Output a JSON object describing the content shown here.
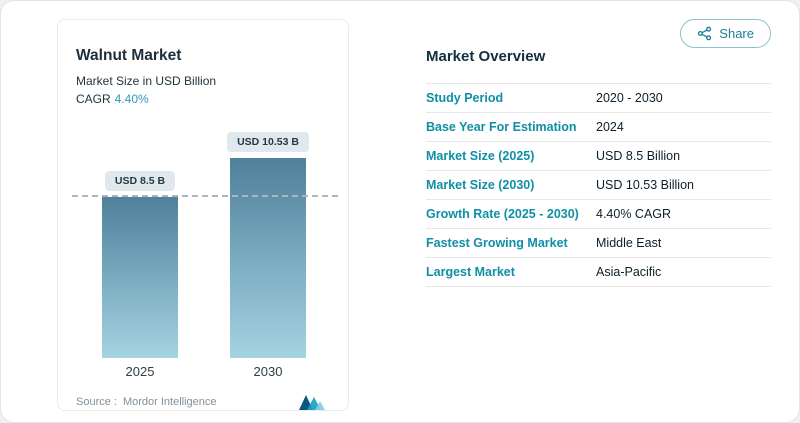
{
  "share": {
    "label": "Share"
  },
  "chart_panel": {
    "title": "Walnut Market",
    "subtitle": "Market Size in USD Billion",
    "cagr_label": "CAGR",
    "cagr_value": "4.40%",
    "source_label": "Source :",
    "source_value": "Mordor Intelligence"
  },
  "chart_data": {
    "type": "bar",
    "title": "Walnut Market",
    "subtitle": "Market Size in USD Billion",
    "categories": [
      "2025",
      "2030"
    ],
    "values": [
      8.5,
      10.53
    ],
    "bar_labels": [
      "USD 8.5 B",
      "USD 10.53 B"
    ],
    "ylabel": "Market Size (USD Billion)",
    "ylim": [
      0,
      10.53
    ],
    "reference_line": 8.5,
    "legend": "none",
    "grid": "off",
    "colors": {
      "bar_top": "#50809b",
      "bar_bottom": "#a4d4e2",
      "accent": "#0f8fa6"
    }
  },
  "overview": {
    "heading": "Market Overview",
    "rows": [
      {
        "label": "Study Period",
        "value": "2020 - 2030"
      },
      {
        "label": "Base Year For Estimation",
        "value": "2024"
      },
      {
        "label": "Market Size (2025)",
        "value": "USD 8.5 Billion"
      },
      {
        "label": "Market Size (2030)",
        "value": "USD 10.53 Billion"
      },
      {
        "label": "Growth Rate (2025 - 2030)",
        "value": "4.40% CAGR"
      },
      {
        "label": "Fastest Growing Market",
        "value": "Middle East"
      },
      {
        "label": "Largest Market",
        "value": "Asia-Pacific"
      }
    ]
  }
}
